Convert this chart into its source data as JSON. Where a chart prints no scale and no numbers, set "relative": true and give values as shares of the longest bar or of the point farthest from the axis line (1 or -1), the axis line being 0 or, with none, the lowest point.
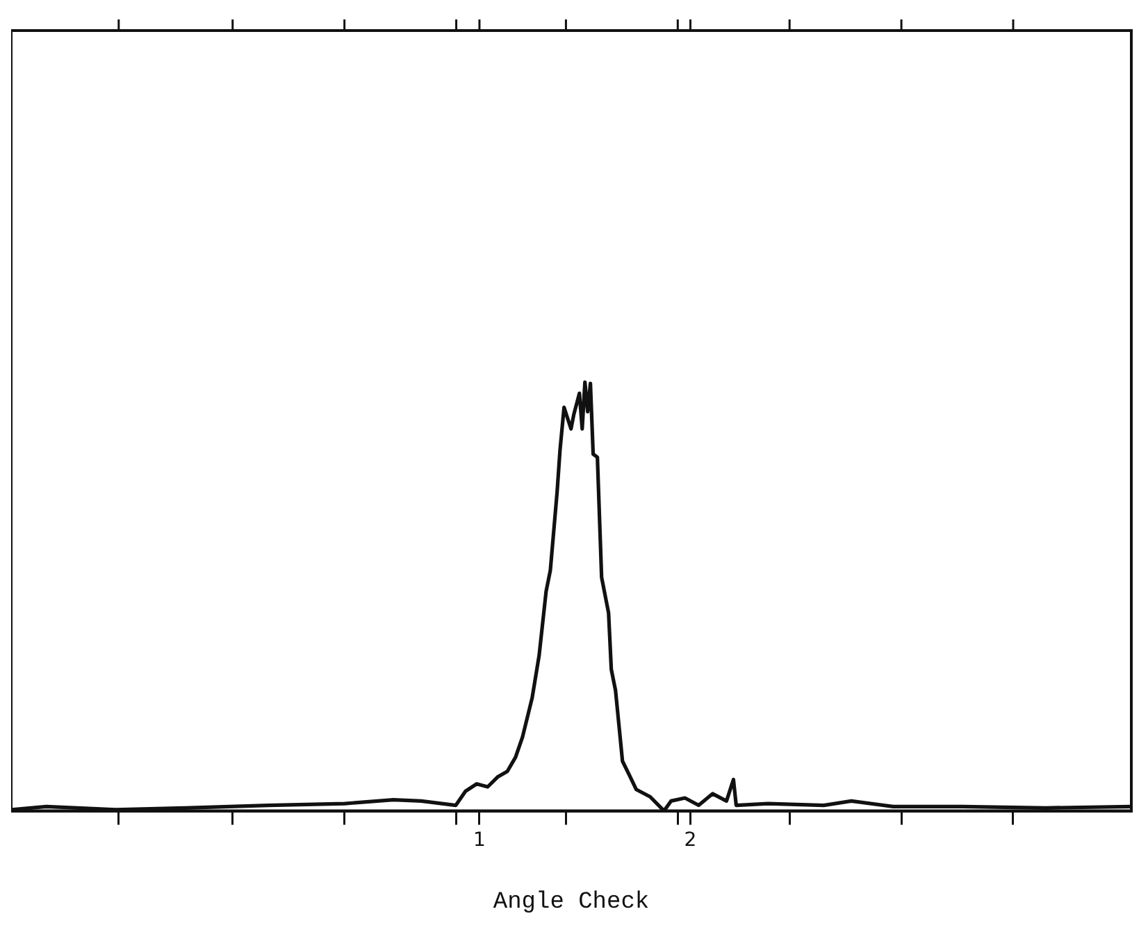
{
  "chart_data": {
    "type": "line",
    "xlabel": "Angle Check",
    "relative": true,
    "legend": false,
    "grid": false,
    "marker": "none",
    "line_style": "solid",
    "xlim": [
      -1.22,
      4.09
    ],
    "xticks": [
      {
        "value": -0.71,
        "label": null
      },
      {
        "value": -0.17,
        "label": null
      },
      {
        "value": 0.36,
        "label": null
      },
      {
        "value": 0.89,
        "label": null
      },
      1,
      {
        "value": 1.41,
        "label": null
      },
      {
        "value": 1.94,
        "label": null
      },
      2,
      {
        "value": 2.47,
        "label": null
      },
      {
        "value": 3.0,
        "label": null
      },
      {
        "value": 3.53,
        "label": null
      }
    ],
    "series": [
      {
        "color": "#111111",
        "x": [
          -1.217,
          -1.053,
          -0.724,
          -0.395,
          0.0,
          0.362,
          0.592,
          0.724,
          0.888,
          0.934,
          0.987,
          1.039,
          1.086,
          1.132,
          1.171,
          1.204,
          1.25,
          1.283,
          1.316,
          1.336,
          1.368,
          1.382,
          1.401,
          1.434,
          1.447,
          1.474,
          1.487,
          1.5,
          1.513,
          1.526,
          1.539,
          1.559,
          1.579,
          1.612,
          1.625,
          1.645,
          1.678,
          1.711,
          1.743,
          1.809,
          1.875,
          1.908,
          1.974,
          2.039,
          2.105,
          2.171,
          2.204,
          2.217,
          2.368,
          2.632,
          2.763,
          2.961,
          3.289,
          3.684,
          4.09
        ],
        "values": [
          0.003,
          0.01,
          0.003,
          0.007,
          0.013,
          0.017,
          0.026,
          0.023,
          0.013,
          0.046,
          0.063,
          0.056,
          0.079,
          0.092,
          0.125,
          0.172,
          0.264,
          0.363,
          0.512,
          0.561,
          0.743,
          0.842,
          0.941,
          0.891,
          0.924,
          0.974,
          0.891,
          1.0,
          0.931,
          0.997,
          0.832,
          0.825,
          0.545,
          0.462,
          0.33,
          0.281,
          0.116,
          0.083,
          0.05,
          0.033,
          0.0,
          0.023,
          0.03,
          0.013,
          0.04,
          0.023,
          0.073,
          0.013,
          0.017,
          0.013,
          0.023,
          0.01,
          0.01,
          0.007,
          0.01
        ]
      }
    ]
  }
}
